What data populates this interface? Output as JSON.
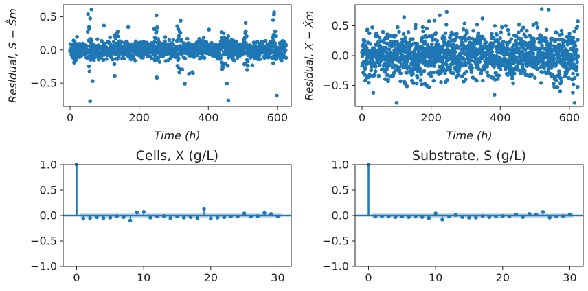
{
  "colors": {
    "series": "#1f77b4",
    "band": "#aec7e8",
    "axis": "#222222"
  },
  "chart_data": [
    {
      "id": "residual-s",
      "type": "scatter",
      "xlabel": "Time  (h)",
      "ylabel": "Residual, S − Ŝm",
      "xlim": [
        -20,
        640
      ],
      "ylim": [
        -0.85,
        0.68
      ],
      "xticks": [
        0,
        200,
        400,
        600
      ],
      "yticks": [
        0.5,
        0.0,
        -0.5
      ],
      "x_range": [
        0,
        625
      ],
      "n_points": 1250,
      "typical_spread": 0.07,
      "grid": false,
      "notable_points": [
        {
          "x": 62,
          "y": 0.61
        },
        {
          "x": 250,
          "y": 0.52
        },
        {
          "x": 590,
          "y": 0.53
        },
        {
          "x": 58,
          "y": -0.77
        },
        {
          "x": 458,
          "y": -0.76
        },
        {
          "x": 598,
          "y": -0.69
        },
        {
          "x": 332,
          "y": -0.51
        },
        {
          "x": 65,
          "y": -0.47
        },
        {
          "x": 320,
          "y": 0.44
        }
      ],
      "bursts": [
        {
          "x": 15,
          "amp": 0.35
        },
        {
          "x": 55,
          "amp": 0.45
        },
        {
          "x": 135,
          "amp": 0.3
        },
        {
          "x": 250,
          "amp": 0.45
        },
        {
          "x": 315,
          "amp": 0.4
        },
        {
          "x": 440,
          "amp": 0.35
        },
        {
          "x": 455,
          "amp": 0.45
        },
        {
          "x": 510,
          "amp": 0.3
        },
        {
          "x": 590,
          "amp": 0.4
        }
      ]
    },
    {
      "id": "residual-x",
      "type": "scatter",
      "xlabel": "Time  (h)",
      "ylabel": "Residual, X − X̂m",
      "xlim": [
        -20,
        640
      ],
      "ylim": [
        -0.85,
        0.85
      ],
      "xticks": [
        0,
        200,
        400,
        600
      ],
      "yticks": [
        0.5,
        0.0,
        -0.5
      ],
      "x_range": [
        0,
        625
      ],
      "n_points": 1500,
      "typical_spread": 0.22,
      "grid": false,
      "notable_points": [
        {
          "x": 520,
          "y": 0.78
        },
        {
          "x": 540,
          "y": 0.77
        },
        {
          "x": 245,
          "y": 0.73
        },
        {
          "x": 100,
          "y": -0.79
        },
        {
          "x": 615,
          "y": -0.79
        },
        {
          "x": 610,
          "y": -0.62
        }
      ]
    },
    {
      "id": "acf-cells",
      "type": "stem",
      "title": "Cells, X (g/L)",
      "xlim": [
        -2,
        32
      ],
      "ylim": [
        -1.0,
        1.0
      ],
      "xticks": [
        0,
        10,
        20,
        30
      ],
      "yticks": [
        1.0,
        0.5,
        0.0,
        -0.5,
        -1.0
      ],
      "confidence_band": 0.05,
      "lags": [
        0,
        1,
        2,
        3,
        4,
        5,
        6,
        7,
        8,
        9,
        10,
        11,
        12,
        13,
        14,
        15,
        16,
        17,
        18,
        19,
        20,
        21,
        22,
        23,
        24,
        25,
        26,
        27,
        28,
        29,
        30
      ],
      "values": [
        1.0,
        -0.06,
        -0.05,
        -0.03,
        -0.05,
        -0.04,
        -0.01,
        -0.03,
        -0.1,
        0.06,
        0.07,
        -0.04,
        -0.02,
        -0.01,
        -0.05,
        -0.02,
        -0.04,
        -0.03,
        -0.05,
        0.13,
        -0.06,
        -0.04,
        -0.03,
        -0.02,
        -0.02,
        0.04,
        -0.02,
        -0.01,
        0.05,
        0.03,
        -0.02
      ]
    },
    {
      "id": "acf-substrate",
      "type": "stem",
      "title": "Substrate, S (g/L)",
      "xlim": [
        -2,
        32
      ],
      "ylim": [
        -1.0,
        1.0
      ],
      "xticks": [
        0,
        10,
        20,
        30
      ],
      "yticks": [
        1.0,
        0.5,
        0.0,
        -0.5,
        -1.0
      ],
      "confidence_band": 0.05,
      "lags": [
        0,
        1,
        2,
        3,
        4,
        5,
        6,
        7,
        8,
        9,
        10,
        11,
        12,
        13,
        14,
        15,
        16,
        17,
        18,
        19,
        20,
        21,
        22,
        23,
        24,
        25,
        26,
        27,
        28,
        29,
        30
      ],
      "values": [
        1.0,
        -0.02,
        -0.02,
        -0.02,
        -0.03,
        -0.02,
        -0.03,
        -0.02,
        -0.03,
        -0.05,
        0.04,
        -0.08,
        -0.02,
        0.01,
        -0.03,
        -0.04,
        -0.04,
        -0.01,
        -0.03,
        -0.02,
        -0.01,
        -0.02,
        0.02,
        -0.03,
        0.03,
        0.02,
        0.07,
        -0.04,
        -0.02,
        -0.01,
        0.02
      ]
    }
  ]
}
